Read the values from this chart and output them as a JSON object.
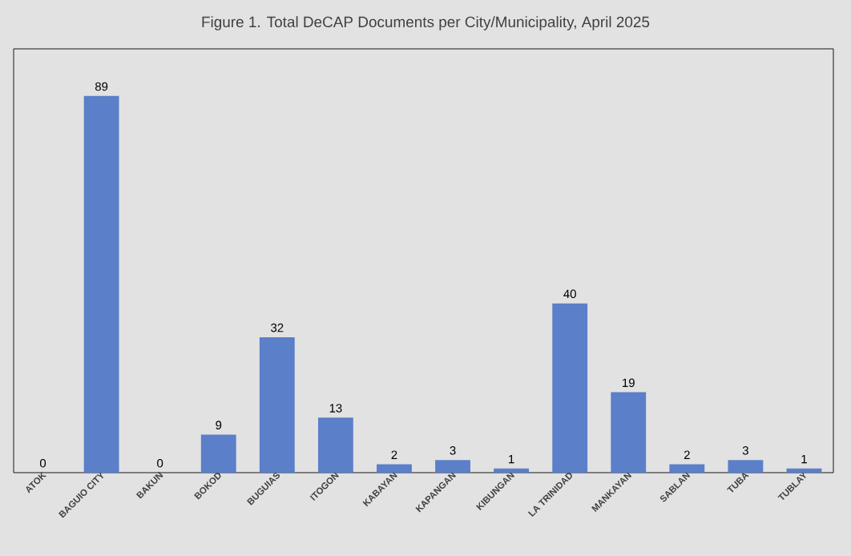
{
  "chart_data": {
    "type": "bar",
    "title": "Figure 1. Total DeCAP Documents per City/Municipality, April 2025",
    "categories": [
      "ATOK",
      "BAGUIO CITY",
      "BAKUN",
      "BOKOD",
      "BUGUIAS",
      "ITOGON",
      "KABAYAN",
      "KAPANGAN",
      "KIBUNGAN",
      "LA TRINIDAD",
      "MANKAYAN",
      "SABLAN",
      "TUBA",
      "TUBLAY"
    ],
    "values": [
      0,
      89,
      0,
      9,
      32,
      13,
      2,
      3,
      1,
      40,
      19,
      2,
      3,
      1
    ],
    "color": "#5b7fc8",
    "data_labels": true,
    "tick_labels": "x"
  }
}
